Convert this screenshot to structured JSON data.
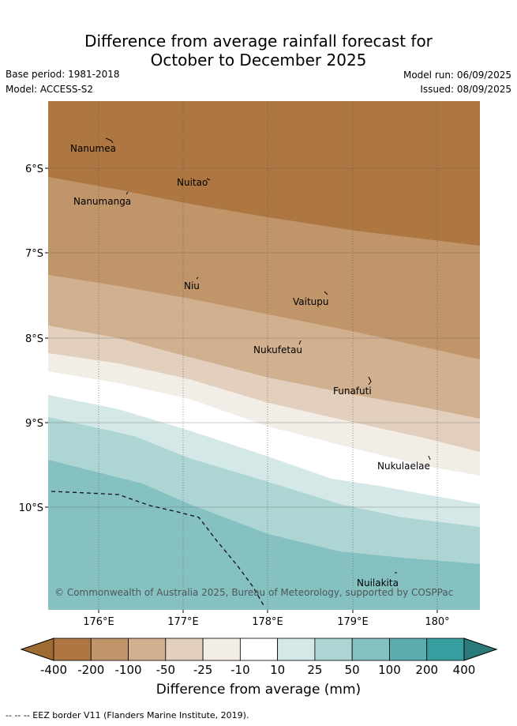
{
  "header": {
    "title_line1": "Difference from average rainfall forecast for",
    "title_line2": "October to December 2025",
    "base_period": "Base period: 1981-2018",
    "model": "Model: ACCESS-S2",
    "model_run": "Model run: 06/09/2025",
    "issued": "Issued: 08/09/2025"
  },
  "map": {
    "x_ticks": [
      "176°E",
      "177°E",
      "178°E",
      "179°E",
      "180°"
    ],
    "y_ticks": [
      "6°S",
      "7°S",
      "8°S",
      "9°S",
      "10°S"
    ],
    "islands": [
      "Nanumea",
      "Nuitao",
      "Nanumanga",
      "Niu",
      "Vaitupu",
      "Nukufetau",
      "Funafuti",
      "Nukulaelae",
      "Nuilakita"
    ],
    "copyright": "© Commonwealth of Australia 2025, Bureau of Meteorology, supported by COSPPac"
  },
  "colorbar": {
    "labels": [
      "-400",
      "-200",
      "-100",
      "-50",
      "-25",
      "-10",
      "10",
      "25",
      "50",
      "100",
      "200",
      "400"
    ],
    "colors": [
      "#a06a33",
      "#ae7640",
      "#c0956a",
      "#d1b090",
      "#e2cfbe",
      "#f2ede7",
      "#ffffff",
      "#d4e8e7",
      "#acd5d4",
      "#85c1c1",
      "#5cadaf",
      "#379e9f",
      "#2a7a7b"
    ],
    "title": "Difference from average (mm)"
  },
  "legend_note": "--  --  -- EEZ border V11 (Flanders Marine Institute, 2019)."
}
